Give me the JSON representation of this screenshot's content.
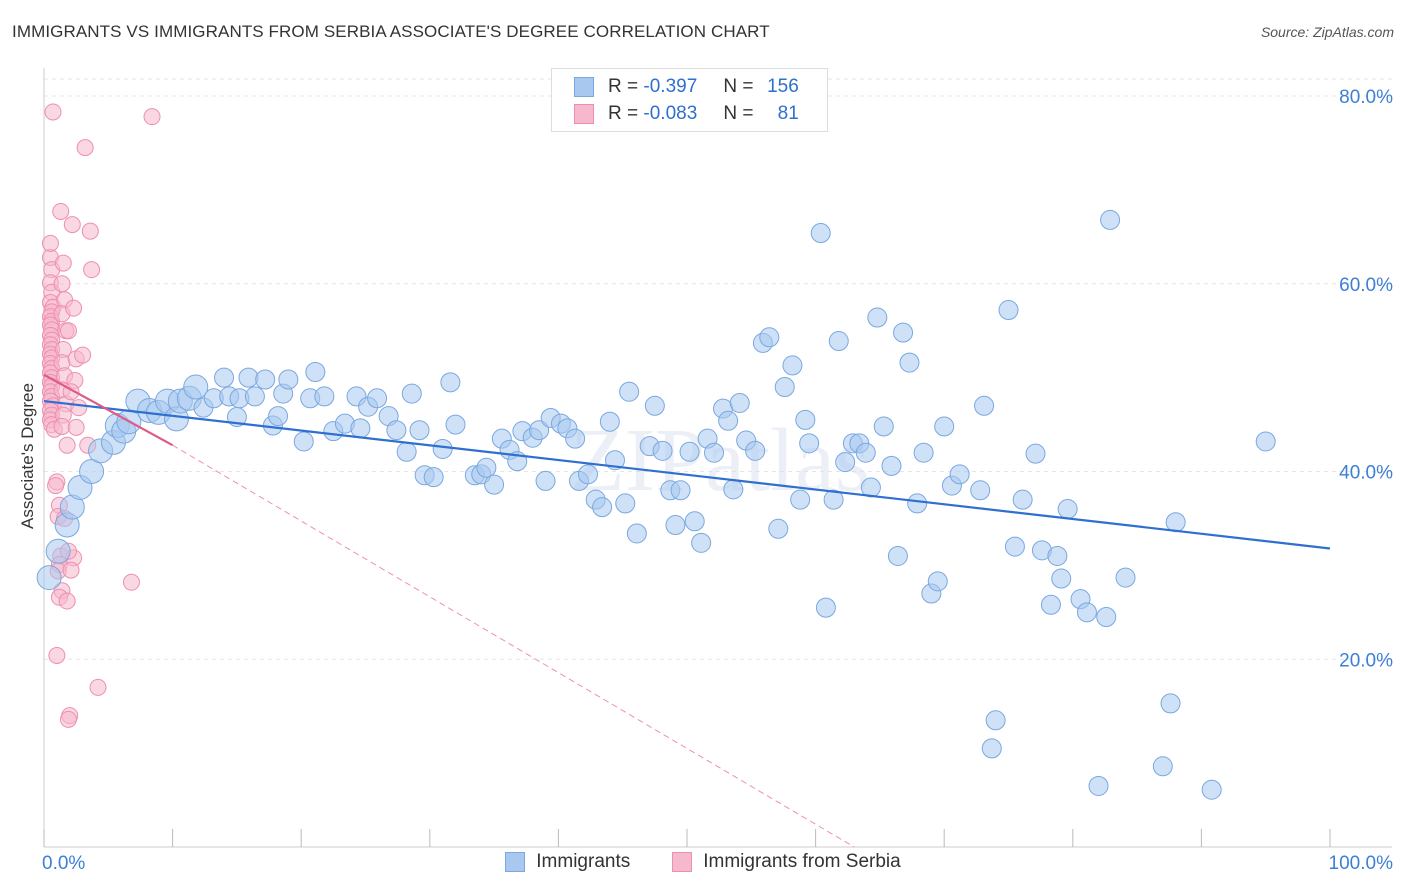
{
  "title": "IMMIGRANTS VS IMMIGRANTS FROM SERBIA ASSOCIATE'S DEGREE CORRELATION CHART",
  "source": "Source: ZipAtlas.com",
  "watermark": "ZIPatlas",
  "legend_stats": [
    {
      "r_label": "R =",
      "r_value": "-0.397",
      "n_label": "N =",
      "n_value": "156"
    },
    {
      "r_label": "R =",
      "r_value": "-0.083",
      "n_label": "N =",
      "n_value": "81"
    }
  ],
  "colors": {
    "blue_fill": "#a8c8f0",
    "blue_stroke": "#7aa8e0",
    "blue_line": "#2f6fd0",
    "pink_fill": "#f6b8cc",
    "pink_stroke": "#ee8fb0",
    "pink_line": "#e05a88",
    "axis_label_blue": "#3d7fd6",
    "grid": "#e6e6e6"
  },
  "chart_data": {
    "type": "scatter",
    "title": "IMMIGRANTS VS IMMIGRANTS FROM SERBIA ASSOCIATE'S DEGREE CORRELATION CHART",
    "xlabel": "",
    "ylabel": "Associate's Degree",
    "xlim": [
      0,
      100
    ],
    "ylim": [
      0,
      80
    ],
    "x_tick_labels": [
      "0.0%",
      "100.0%"
    ],
    "y_ticks": [
      20,
      40,
      60,
      80
    ],
    "y_tick_labels": [
      "20.0%",
      "40.0%",
      "60.0%",
      "80.0%"
    ],
    "grid": true,
    "legend_placement": "bottom",
    "series": [
      {
        "name": "Immigrants",
        "color": "#a8c8f0",
        "trend": {
          "x": [
            0,
            100
          ],
          "y": [
            47.5,
            31.8
          ]
        },
        "points": [
          [
            0.4,
            28.7
          ],
          [
            1.1,
            31.5
          ],
          [
            1.8,
            34.3
          ],
          [
            2.2,
            36.2
          ],
          [
            2.8,
            38.3
          ],
          [
            3.7,
            40.0
          ],
          [
            4.4,
            42.2
          ],
          [
            5.4,
            43.1
          ],
          [
            5.7,
            44.9
          ],
          [
            6.2,
            44.3
          ],
          [
            6.6,
            45.3
          ],
          [
            7.3,
            47.5
          ],
          [
            8.2,
            46.5
          ],
          [
            8.9,
            46.3
          ],
          [
            9.6,
            47.5
          ],
          [
            10.3,
            45.6
          ],
          [
            10.6,
            47.5
          ],
          [
            11.3,
            47.8
          ],
          [
            11.8,
            49.0
          ],
          [
            12.4,
            46.8
          ],
          [
            13.2,
            47.8
          ],
          [
            14.0,
            50.0
          ],
          [
            14.4,
            48.0
          ],
          [
            15.0,
            45.8
          ],
          [
            15.2,
            47.8
          ],
          [
            16.4,
            48.0
          ],
          [
            15.9,
            50.0
          ],
          [
            17.2,
            49.8
          ],
          [
            17.8,
            44.9
          ],
          [
            18.6,
            48.3
          ],
          [
            18.2,
            45.9
          ],
          [
            19.0,
            49.8
          ],
          [
            20.2,
            43.2
          ],
          [
            20.7,
            47.8
          ],
          [
            21.1,
            50.6
          ],
          [
            21.8,
            48.0
          ],
          [
            22.5,
            44.3
          ],
          [
            23.4,
            45.1
          ],
          [
            24.3,
            48.0
          ],
          [
            25.2,
            46.9
          ],
          [
            24.6,
            44.6
          ],
          [
            25.9,
            47.8
          ],
          [
            26.8,
            45.9
          ],
          [
            27.4,
            44.4
          ],
          [
            28.2,
            42.1
          ],
          [
            28.6,
            48.3
          ],
          [
            29.2,
            44.4
          ],
          [
            29.6,
            39.6
          ],
          [
            30.3,
            39.4
          ],
          [
            31.0,
            42.4
          ],
          [
            31.6,
            49.5
          ],
          [
            32.0,
            45.0
          ],
          [
            33.5,
            39.6
          ],
          [
            34.0,
            39.7
          ],
          [
            34.4,
            40.4
          ],
          [
            35.0,
            38.6
          ],
          [
            35.6,
            43.5
          ],
          [
            36.2,
            42.3
          ],
          [
            36.8,
            41.1
          ],
          [
            37.2,
            44.3
          ],
          [
            38.0,
            43.6
          ],
          [
            38.5,
            44.4
          ],
          [
            39.0,
            39.0
          ],
          [
            39.4,
            45.7
          ],
          [
            40.2,
            45.1
          ],
          [
            40.7,
            44.6
          ],
          [
            41.3,
            43.5
          ],
          [
            41.6,
            39.0
          ],
          [
            42.3,
            39.7
          ],
          [
            42.9,
            37.0
          ],
          [
            43.4,
            36.2
          ],
          [
            44.0,
            45.3
          ],
          [
            44.4,
            41.2
          ],
          [
            45.2,
            36.6
          ],
          [
            45.5,
            48.5
          ],
          [
            46.1,
            33.4
          ],
          [
            47.1,
            42.7
          ],
          [
            47.5,
            47.0
          ],
          [
            48.1,
            42.2
          ],
          [
            48.7,
            38.0
          ],
          [
            49.1,
            34.3
          ],
          [
            49.5,
            38.0
          ],
          [
            50.2,
            42.1
          ],
          [
            50.6,
            34.7
          ],
          [
            51.1,
            32.4
          ],
          [
            51.6,
            43.5
          ],
          [
            52.1,
            42.0
          ],
          [
            52.8,
            46.7
          ],
          [
            53.2,
            45.4
          ],
          [
            53.6,
            38.1
          ],
          [
            54.1,
            47.3
          ],
          [
            54.6,
            43.3
          ],
          [
            55.3,
            42.2
          ],
          [
            55.9,
            53.7
          ],
          [
            56.4,
            54.3
          ],
          [
            57.1,
            33.9
          ],
          [
            57.6,
            49.0
          ],
          [
            58.2,
            51.3
          ],
          [
            58.8,
            37.0
          ],
          [
            59.2,
            45.5
          ],
          [
            59.5,
            43.0
          ],
          [
            60.4,
            65.4
          ],
          [
            60.8,
            25.5
          ],
          [
            61.4,
            37.0
          ],
          [
            61.8,
            53.9
          ],
          [
            62.3,
            41.0
          ],
          [
            62.9,
            43.0
          ],
          [
            63.4,
            43.0
          ],
          [
            63.9,
            42.0
          ],
          [
            64.3,
            38.3
          ],
          [
            64.8,
            56.4
          ],
          [
            65.3,
            44.8
          ],
          [
            65.9,
            40.6
          ],
          [
            66.4,
            31.0
          ],
          [
            66.8,
            54.8
          ],
          [
            67.3,
            51.6
          ],
          [
            67.9,
            36.6
          ],
          [
            68.4,
            42.0
          ],
          [
            69.0,
            27.0
          ],
          [
            69.5,
            28.3
          ],
          [
            70.0,
            44.8
          ],
          [
            70.6,
            38.5
          ],
          [
            71.2,
            39.7
          ],
          [
            72.8,
            38.0
          ],
          [
            73.1,
            47.0
          ],
          [
            73.7,
            10.5
          ],
          [
            74.0,
            13.5
          ],
          [
            75.0,
            57.2
          ],
          [
            75.5,
            32.0
          ],
          [
            76.1,
            37.0
          ],
          [
            77.1,
            41.9
          ],
          [
            77.6,
            31.6
          ],
          [
            78.3,
            25.8
          ],
          [
            78.8,
            31.0
          ],
          [
            79.1,
            28.6
          ],
          [
            79.6,
            36.0
          ],
          [
            80.6,
            26.4
          ],
          [
            81.1,
            25.0
          ],
          [
            82.0,
            6.5
          ],
          [
            82.6,
            24.5
          ],
          [
            82.9,
            66.8
          ],
          [
            84.1,
            28.7
          ],
          [
            87.0,
            8.6
          ],
          [
            87.6,
            15.3
          ],
          [
            88.0,
            34.6
          ],
          [
            90.8,
            6.1
          ],
          [
            95.0,
            43.2
          ]
        ]
      },
      {
        "name": "Immigrants from Serbia",
        "color": "#f6b8cc",
        "trend": {
          "x": [
            0,
            10
          ],
          "y": [
            50.3,
            42.8
          ]
        },
        "trend_extended": {
          "x": [
            10,
            63
          ],
          "y": [
            42.8,
            0
          ]
        },
        "points": [
          [
            0.7,
            78.3
          ],
          [
            0.5,
            62.8
          ],
          [
            0.6,
            61.5
          ],
          [
            0.5,
            60.1
          ],
          [
            0.6,
            59.1
          ],
          [
            0.5,
            58.0
          ],
          [
            0.7,
            57.5
          ],
          [
            0.6,
            57.0
          ],
          [
            0.5,
            56.5
          ],
          [
            0.6,
            56.0
          ],
          [
            0.5,
            55.6
          ],
          [
            0.6,
            55.1
          ],
          [
            0.5,
            54.5
          ],
          [
            0.6,
            54.0
          ],
          [
            0.5,
            53.5
          ],
          [
            0.6,
            53.0
          ],
          [
            0.5,
            52.5
          ],
          [
            0.6,
            52.1
          ],
          [
            0.5,
            51.5
          ],
          [
            0.6,
            51.0
          ],
          [
            0.5,
            50.5
          ],
          [
            0.6,
            50.0
          ],
          [
            0.5,
            49.5
          ],
          [
            0.6,
            49.1
          ],
          [
            0.5,
            48.5
          ],
          [
            0.6,
            48.0
          ],
          [
            0.5,
            47.5
          ],
          [
            0.7,
            47.0
          ],
          [
            0.5,
            46.5
          ],
          [
            0.6,
            46.0
          ],
          [
            0.5,
            45.5
          ],
          [
            0.6,
            45.0
          ],
          [
            0.8,
            44.5
          ],
          [
            0.5,
            64.3
          ],
          [
            1.3,
            67.7
          ],
          [
            1.5,
            62.2
          ],
          [
            1.4,
            60.0
          ],
          [
            1.6,
            58.3
          ],
          [
            1.4,
            56.8
          ],
          [
            1.7,
            55.0
          ],
          [
            1.5,
            53.0
          ],
          [
            1.4,
            51.6
          ],
          [
            1.6,
            50.2
          ],
          [
            1.4,
            48.7
          ],
          [
            1.7,
            47.2
          ],
          [
            1.5,
            46.0
          ],
          [
            1.4,
            44.8
          ],
          [
            1.0,
            38.9
          ],
          [
            1.2,
            36.4
          ],
          [
            1.1,
            35.2
          ],
          [
            1.3,
            31.0
          ],
          [
            1.2,
            30.1
          ],
          [
            1.1,
            29.4
          ],
          [
            1.4,
            27.3
          ],
          [
            1.2,
            26.6
          ],
          [
            1.0,
            20.4
          ],
          [
            1.8,
            26.2
          ],
          [
            2.0,
            14.0
          ],
          [
            1.9,
            13.6
          ],
          [
            2.2,
            66.3
          ],
          [
            2.3,
            57.4
          ],
          [
            2.5,
            52.0
          ],
          [
            2.4,
            49.7
          ],
          [
            2.7,
            46.8
          ],
          [
            2.5,
            44.7
          ],
          [
            2.3,
            30.8
          ],
          [
            3.2,
            74.5
          ],
          [
            3.0,
            52.4
          ],
          [
            3.4,
            42.8
          ],
          [
            3.6,
            65.6
          ],
          [
            3.7,
            61.5
          ],
          [
            4.2,
            17.0
          ],
          [
            8.4,
            77.8
          ],
          [
            6.8,
            28.2
          ],
          [
            1.9,
            55.0
          ],
          [
            2.1,
            48.5
          ],
          [
            1.8,
            42.8
          ],
          [
            0.9,
            38.5
          ],
          [
            1.6,
            35.0
          ],
          [
            1.9,
            31.5
          ],
          [
            2.1,
            29.5
          ]
        ]
      }
    ]
  }
}
